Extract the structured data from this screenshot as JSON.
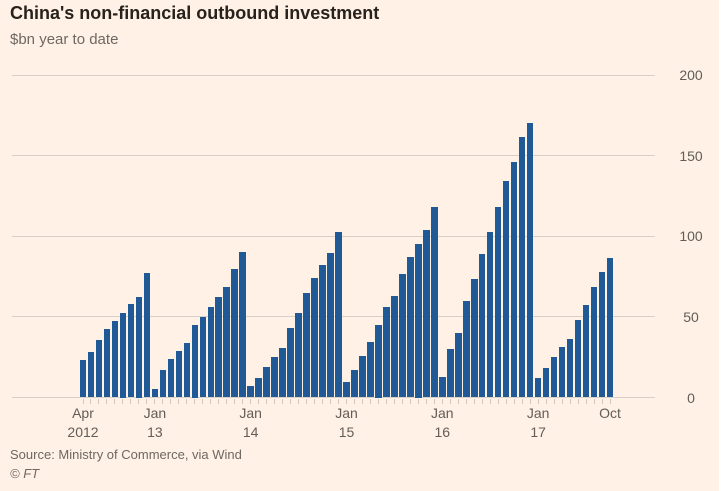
{
  "header": {
    "title": "China's non-financial outbound investment",
    "subtitle": "$bn year to date"
  },
  "footer": {
    "source": "Source: Ministry of Commerce, via Wind",
    "copyright": "© FT"
  },
  "colors": {
    "background": "#fff1e5",
    "bar": "#1f5a96",
    "gridline": "#d8cfc6",
    "text_gray": "#625d58",
    "title_dark": "#27221d"
  },
  "chart_data": {
    "type": "bar",
    "title": "China's non-financial outbound investment",
    "subtitle": "$bn year to date",
    "unit": "$bn",
    "ylim": [
      0,
      200
    ],
    "yticks": [
      0,
      50,
      100,
      150,
      200
    ],
    "y_axis_side": "right",
    "grid": true,
    "x_start": "Apr 2012",
    "x_end": "Oct 2017",
    "x_axis_labels": [
      {
        "month_index": 0,
        "line1": "Apr",
        "line2": "2012"
      },
      {
        "month_index": 9,
        "line1": "Jan",
        "line2": "13"
      },
      {
        "month_index": 21,
        "line1": "Jan",
        "line2": "14"
      },
      {
        "month_index": 33,
        "line1": "Jan",
        "line2": "15"
      },
      {
        "month_index": 45,
        "line1": "Jan",
        "line2": "16"
      },
      {
        "month_index": 57,
        "line1": "Jan",
        "line2": "17"
      },
      {
        "month_index": 66,
        "line1": "Oct",
        "line2": ""
      }
    ],
    "series": [
      {
        "year": "2012",
        "start_month": "Apr",
        "values": [
          23.2,
          28.5,
          35.4,
          42.2,
          47.7,
          52.5,
          58.1,
          62.5,
          77.2
        ]
      },
      {
        "year": "2013",
        "start_month": "Jan",
        "values": [
          5.3,
          17.0,
          23.8,
          29.0,
          33.6,
          45.0,
          50.1,
          56.3,
          62.1,
          68.7,
          79.5,
          90.2
        ]
      },
      {
        "year": "2014",
        "start_month": "Jan",
        "values": [
          7.3,
          11.9,
          19.1,
          25.3,
          30.5,
          43.3,
          52.2,
          64.6,
          74.3,
          82.2,
          89.4,
          102.9
        ]
      },
      {
        "year": "2015",
        "start_month": "Jan",
        "values": [
          9.8,
          17.1,
          25.7,
          34.6,
          45.0,
          55.9,
          63.1,
          76.6,
          86.9,
          95.0,
          103.9,
          118.0
        ]
      },
      {
        "year": "2016",
        "start_month": "Jan",
        "values": [
          12.9,
          29.9,
          40.2,
          60.1,
          73.5,
          88.9,
          102.8,
          118.1,
          134.2,
          146.0,
          161.7,
          170.1
        ]
      },
      {
        "year": "2017",
        "start_month": "Jan",
        "values": [
          11.9,
          18.1,
          25.3,
          31.1,
          36.1,
          48.2,
          57.2,
          68.7,
          78.0,
          86.3
        ]
      }
    ]
  }
}
